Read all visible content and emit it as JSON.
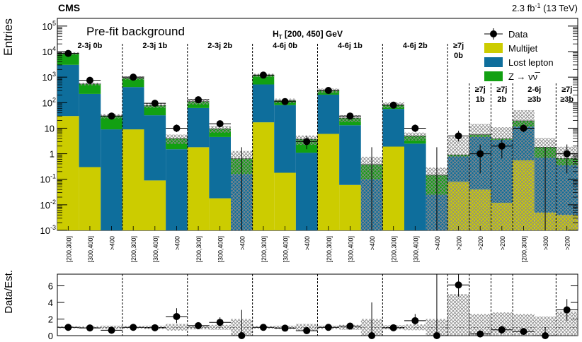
{
  "chart_data": {
    "type": "bar",
    "experiment": "CMS",
    "lumi": "2.3 fb",
    "lumi_exp": "-1",
    "energy": " (13 TeV)",
    "ylabel": "Entries",
    "ratio_ylabel": "Data/Est.",
    "prefit_label": "Pre-fit background",
    "ht_label_pre": "H",
    "ht_label_sub": "T",
    "ht_label_post": " [200, 450] GeV",
    "ylim": [
      0.001,
      200000
    ],
    "yscale": "log",
    "y_ticks": [
      {
        "base": "10",
        "exp": "-3",
        "v": 0.001
      },
      {
        "base": "10",
        "exp": "-2",
        "v": 0.01
      },
      {
        "base": "10",
        "exp": "-1",
        "v": 0.1
      },
      {
        "base": "1",
        "exp": "",
        "v": 1
      },
      {
        "base": "10",
        "exp": "",
        "v": 10
      },
      {
        "base": "10",
        "exp": "2",
        "v": 100
      },
      {
        "base": "10",
        "exp": "3",
        "v": 1000
      },
      {
        "base": "10",
        "exp": "4",
        "v": 10000
      },
      {
        "base": "10",
        "exp": "5",
        "v": 100000
      }
    ],
    "ratio_ylim": [
      0,
      7.4
    ],
    "ratio_ticks": [
      "0",
      "2",
      "4",
      "6"
    ],
    "legend": {
      "placement": "top-right",
      "entries": [
        {
          "name": "Data",
          "style": "marker"
        },
        {
          "name": "Multijet",
          "color": "#cccc00"
        },
        {
          "name": "Lost lepton",
          "color": "#0e6e9c"
        },
        {
          "name": "Z → νν̅",
          "color": "#12a012"
        }
      ]
    },
    "colors": {
      "multijet": "#cccc00",
      "lostlep": "#0e6e9c",
      "znn": "#12a012",
      "data": "#000000",
      "unc": "#999999"
    },
    "categories": [
      "[200,300]",
      "[300,400]",
      ">400",
      "[200,300]",
      "[300,400]",
      ">400",
      "[200,300]",
      "[300,400]",
      ">400",
      "[200,300]",
      "[300,400]",
      ">400",
      "[200,300]",
      "[300,400]",
      ">400",
      "[200,300]",
      "[300,400]",
      ">400",
      ">200",
      ">200",
      ">200",
      "[200,300]",
      ">300",
      ">200"
    ],
    "region_labels": [
      {
        "l1": "2-3j 0b",
        "l2": "",
        "first_bin": 0,
        "last_bin": 2,
        "row": 0
      },
      {
        "l1": "2-3j 1b",
        "l2": "",
        "first_bin": 3,
        "last_bin": 5,
        "row": 0
      },
      {
        "l1": "2-3j 2b",
        "l2": "",
        "first_bin": 6,
        "last_bin": 8,
        "row": 0
      },
      {
        "l1": "4-6j 0b",
        "l2": "",
        "first_bin": 9,
        "last_bin": 11,
        "row": 0
      },
      {
        "l1": "4-6j 1b",
        "l2": "",
        "first_bin": 12,
        "last_bin": 14,
        "row": 0
      },
      {
        "l1": "4-6j 2b",
        "l2": "",
        "first_bin": 15,
        "last_bin": 17,
        "row": 0
      },
      {
        "l1": "≥7j",
        "l2": "0b",
        "first_bin": 18,
        "last_bin": 18,
        "row": 0
      },
      {
        "l1": "≥7j",
        "l2": "1b",
        "first_bin": 19,
        "last_bin": 19,
        "row": 1
      },
      {
        "l1": "≥7j",
        "l2": "2b",
        "first_bin": 20,
        "last_bin": 20,
        "row": 1
      },
      {
        "l1": "2-6j",
        "l2": "≥3b",
        "first_bin": 21,
        "last_bin": 22,
        "row": 1
      },
      {
        "l1": "≥7j",
        "l2": "≥3b",
        "first_bin": 23,
        "last_bin": 23,
        "row": 1
      }
    ],
    "series": [
      {
        "name": "Multijet",
        "values": [
          30,
          0.3,
          0,
          9,
          0.09,
          0,
          1.8,
          0.018,
          0,
          17,
          0.18,
          0,
          6,
          0.06,
          0,
          1.9,
          0,
          0,
          0.08,
          0.04,
          0.012,
          0.55,
          0.005,
          0.004
        ]
      },
      {
        "name": "Lost lepton",
        "values": [
          3000,
          220,
          9,
          400,
          32,
          1.5,
          60,
          4.5,
          0.16,
          500,
          80,
          1.1,
          200,
          13,
          0.1,
          55,
          2.5,
          0.025,
          0.7,
          4.5,
          3.5,
          11,
          0.7,
          0.35
        ]
      },
      {
        "name": "Z → νν̅",
        "values": [
          5500,
          320,
          21,
          520,
          45,
          2.5,
          50,
          5,
          0.48,
          670,
          40,
          2.6,
          90,
          12,
          0.28,
          25,
          2.5,
          0.12,
          0.12,
          1.1,
          0.4,
          8,
          1.1,
          0.3
        ]
      }
    ],
    "background_total": [
      8530,
      540,
      30,
      929,
      77,
      4,
      112,
      9.5,
      0.64,
      1187,
      120,
      3.7,
      296,
      25,
      0.38,
      82,
      5,
      0.145,
      0.9,
      5.6,
      3.9,
      19.5,
      1.8,
      0.65
    ],
    "data": [
      {
        "y": 8500,
        "lo": 8400,
        "hi": 8600
      },
      {
        "y": 750,
        "lo": 700,
        "hi": 800
      },
      {
        "y": 30,
        "lo": 25,
        "hi": 36
      },
      {
        "y": 1000,
        "lo": 940,
        "hi": 1060
      },
      {
        "y": 95,
        "lo": 85,
        "hi": 105
      },
      {
        "y": 10,
        "lo": 7,
        "hi": 14
      },
      {
        "y": 130,
        "lo": 118,
        "hi": 142
      },
      {
        "y": 15,
        "lo": 11,
        "hi": 19.5
      },
      {
        "y": 0,
        "lo": 0,
        "hi": 1.8
      },
      {
        "y": 1200,
        "lo": 1130,
        "hi": 1270
      },
      {
        "y": 110,
        "lo": 100,
        "hi": 121
      },
      {
        "y": 3,
        "lo": 1.5,
        "hi": 5
      },
      {
        "y": 300,
        "lo": 282,
        "hi": 318
      },
      {
        "y": 30,
        "lo": 24,
        "hi": 36
      },
      {
        "y": 0,
        "lo": 0,
        "hi": 1.8
      },
      {
        "y": 80,
        "lo": 71,
        "hi": 89
      },
      {
        "y": 10,
        "lo": 7,
        "hi": 14
      },
      {
        "y": 0,
        "lo": 0,
        "hi": 1.8
      },
      {
        "y": 5,
        "lo": 3,
        "hi": 8
      },
      {
        "y": 1,
        "lo": 0.17,
        "hi": 2.3
      },
      {
        "y": 2,
        "lo": 0.65,
        "hi": 3.6
      },
      {
        "y": 10,
        "lo": 7,
        "hi": 14
      },
      {
        "y": 0,
        "lo": 0,
        "hi": 1.8
      },
      {
        "y": 1,
        "lo": 0.17,
        "hi": 2.3
      }
    ],
    "ratio": [
      {
        "y": 1.0,
        "lo": 0.98,
        "hi": 1.02
      },
      {
        "y": 0.93,
        "lo": 0.88,
        "hi": 0.98
      },
      {
        "y": 0.65,
        "lo": 0.55,
        "hi": 0.85
      },
      {
        "y": 1.0,
        "lo": 0.95,
        "hi": 1.05
      },
      {
        "y": 0.95,
        "lo": 0.87,
        "hi": 1.03
      },
      {
        "y": 2.3,
        "lo": 1.5,
        "hi": 3.3
      },
      {
        "y": 1.2,
        "lo": 1.05,
        "hi": 1.35
      },
      {
        "y": 1.6,
        "lo": 1.1,
        "hi": 2.2
      },
      {
        "y": 0,
        "lo": 0,
        "hi": 3.1
      },
      {
        "y": 1.0,
        "lo": 0.95,
        "hi": 1.05
      },
      {
        "y": 0.9,
        "lo": 0.82,
        "hi": 0.98
      },
      {
        "y": 0.6,
        "lo": 0.3,
        "hi": 1.0
      },
      {
        "y": 1.0,
        "lo": 0.94,
        "hi": 1.06
      },
      {
        "y": 1.15,
        "lo": 0.92,
        "hi": 1.4
      },
      {
        "y": 0,
        "lo": 0,
        "hi": 4.0
      },
      {
        "y": 0.95,
        "lo": 0.85,
        "hi": 1.05
      },
      {
        "y": 1.8,
        "lo": 1.3,
        "hi": 2.6
      },
      {
        "y": 0,
        "lo": 0,
        "hi": 7.4
      },
      {
        "y": 6.1,
        "lo": 4.7,
        "hi": 7.4
      },
      {
        "y": 0.2,
        "lo": 0.05,
        "hi": 0.45
      },
      {
        "y": 0.7,
        "lo": 0.2,
        "hi": 1.2
      },
      {
        "y": 0.5,
        "lo": 0.35,
        "hi": 0.7
      },
      {
        "y": 0,
        "lo": 0,
        "hi": 1.0
      },
      {
        "y": 3.1,
        "lo": 1.8,
        "hi": 4.4
      }
    ],
    "ratio_unc_band": [
      0.12,
      0.12,
      0.2,
      0.15,
      0.2,
      0.4,
      0.25,
      0.3,
      1.0,
      0.15,
      0.2,
      0.4,
      0.2,
      0.3,
      1.0,
      0.25,
      0.35,
      1.0,
      4.0,
      1.6,
      1.8,
      1.6,
      1.3,
      1.9
    ]
  }
}
